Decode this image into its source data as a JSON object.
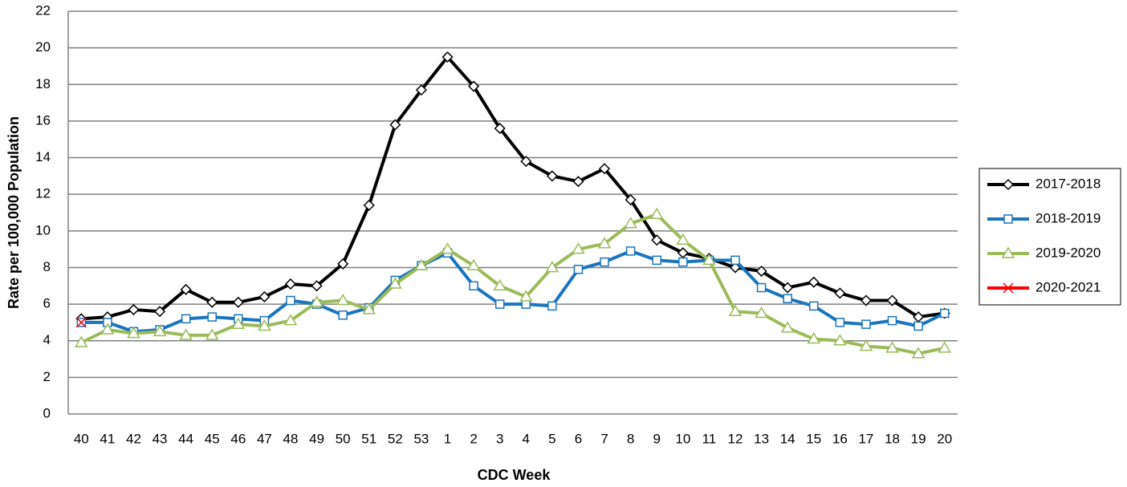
{
  "chart_data": {
    "type": "line",
    "x_label": "CDC Week",
    "y_label": "Rate per 100,000 Population",
    "categories": [
      "40",
      "41",
      "42",
      "43",
      "44",
      "45",
      "46",
      "47",
      "48",
      "49",
      "50",
      "51",
      "52",
      "53",
      "1",
      "2",
      "3",
      "4",
      "5",
      "6",
      "7",
      "8",
      "9",
      "10",
      "11",
      "12",
      "13",
      "14",
      "15",
      "16",
      "17",
      "18",
      "19",
      "20"
    ],
    "series": [
      {
        "name": "2017-2018",
        "color": "#000000",
        "marker": "diamond",
        "values": [
          5.2,
          5.3,
          5.7,
          5.6,
          6.8,
          6.1,
          6.1,
          6.4,
          7.1,
          7.0,
          8.2,
          11.4,
          15.8,
          17.7,
          19.5,
          17.9,
          15.6,
          13.8,
          13.0,
          12.7,
          13.4,
          11.7,
          9.5,
          8.8,
          8.5,
          8.0,
          7.8,
          6.9,
          7.2,
          6.6,
          6.2,
          6.2,
          5.3,
          5.5
        ]
      },
      {
        "name": "2018-2019",
        "color": "#1a75bc",
        "marker": "square",
        "values": [
          5.0,
          5.0,
          4.5,
          4.6,
          5.2,
          5.3,
          5.2,
          5.1,
          6.2,
          6.0,
          5.4,
          5.8,
          7.3,
          8.1,
          8.8,
          7.0,
          6.0,
          6.0,
          5.9,
          7.9,
          8.3,
          8.9,
          8.4,
          8.3,
          8.4,
          8.4,
          6.9,
          6.3,
          5.9,
          5.0,
          4.9,
          5.1,
          4.8,
          5.5
        ]
      },
      {
        "name": "2019-2020",
        "color": "#9bbb59",
        "marker": "triangle",
        "values": [
          3.9,
          4.6,
          4.4,
          4.5,
          4.3,
          4.3,
          4.9,
          4.8,
          5.1,
          6.1,
          6.2,
          5.7,
          7.1,
          8.1,
          9.0,
          8.1,
          7.0,
          6.4,
          8.0,
          9.0,
          9.3,
          10.4,
          10.9,
          9.5,
          8.4,
          5.6,
          5.5,
          4.7,
          4.1,
          4.0,
          3.7,
          3.6,
          3.3,
          3.6
        ]
      },
      {
        "name": "2020-2021",
        "color": "#ff0000",
        "marker": "x",
        "values": [
          5.0,
          null,
          null,
          null,
          null,
          null,
          null,
          null,
          null,
          null,
          null,
          null,
          null,
          null,
          null,
          null,
          null,
          null,
          null,
          null,
          null,
          null,
          null,
          null,
          null,
          null,
          null,
          null,
          null,
          null,
          null,
          null,
          null,
          null
        ]
      }
    ],
    "ylim": [
      0,
      22
    ],
    "yticks": [
      0,
      2,
      4,
      6,
      8,
      10,
      12,
      14,
      16,
      18,
      20,
      22
    ],
    "grid": true,
    "legend": "right"
  }
}
